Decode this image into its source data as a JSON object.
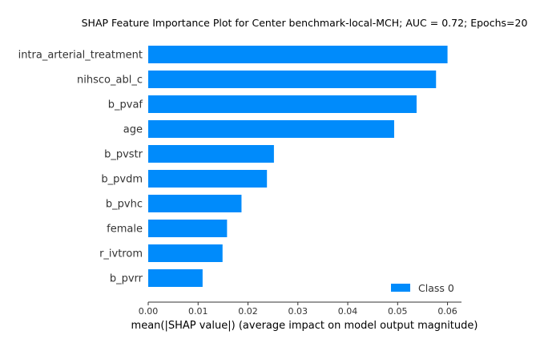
{
  "chart_data": {
    "type": "bar",
    "orientation": "horizontal",
    "title": "SHAP Feature Importance Plot for Center benchmark-local-MCH; AUC = 0.72; Epochs=20",
    "xlabel": "mean(|SHAP value|) (average impact on model output magnitude)",
    "ylabel": "",
    "categories": [
      "intra_arterial_treatment",
      "nihsco_abl_c",
      "b_pvaf",
      "age",
      "b_pvstr",
      "b_pvdm",
      "b_pvhc",
      "female",
      "r_ivtrom",
      "b_pvrr"
    ],
    "series": [
      {
        "name": "Class 0",
        "values": [
          0.06,
          0.0577,
          0.0538,
          0.0493,
          0.0252,
          0.0238,
          0.0187,
          0.0158,
          0.0149,
          0.0109
        ],
        "color": "#008bfb"
      }
    ],
    "xticks": [
      0.0,
      0.01,
      0.02,
      0.03,
      0.04,
      0.05,
      0.06
    ],
    "xtick_labels": [
      "0.00",
      "0.01",
      "0.02",
      "0.03",
      "0.04",
      "0.05",
      "0.06"
    ],
    "xlim": [
      0.0,
      0.0628
    ],
    "grid": false,
    "legend_position": "lower-right"
  }
}
